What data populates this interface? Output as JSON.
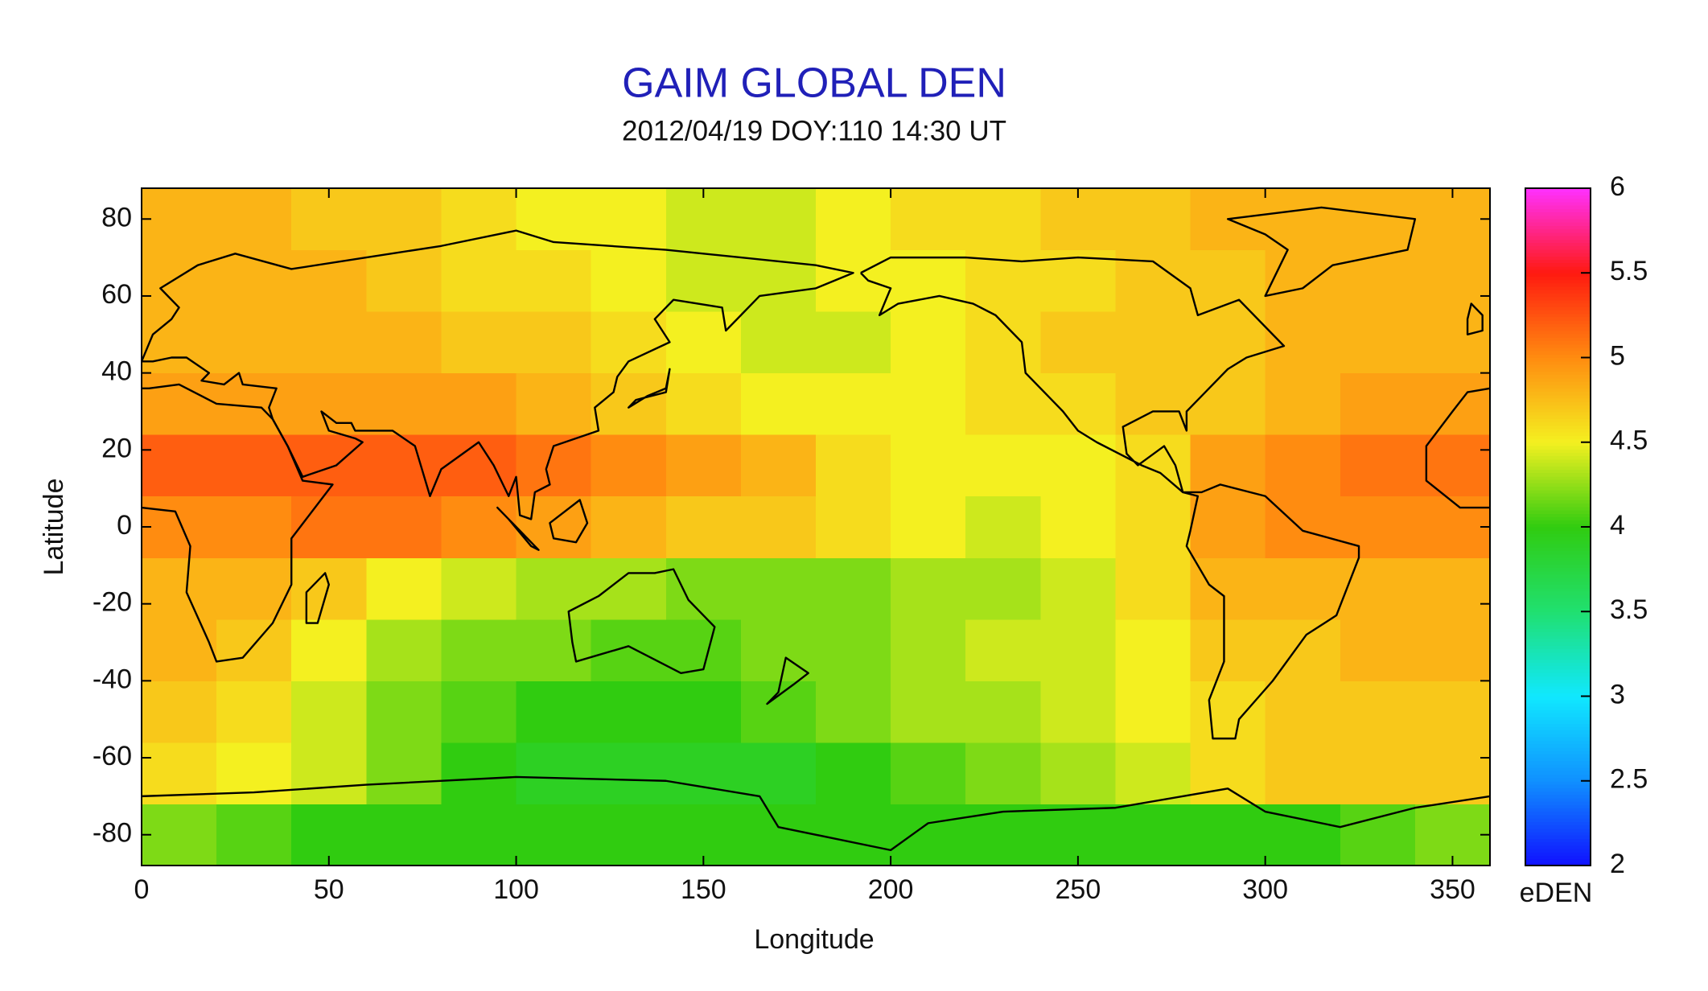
{
  "chart_data": {
    "type": "heatmap",
    "title": "GAIM GLOBAL DEN",
    "subtitle": "2012/04/19 DOY:110 14:30 UT",
    "x_label": "Longitude",
    "y_label": "Latitude",
    "colorbar_label": "eDEN",
    "x": [
      0,
      20,
      40,
      60,
      80,
      100,
      120,
      140,
      160,
      180,
      200,
      220,
      240,
      260,
      280,
      300,
      320,
      340,
      360
    ],
    "y": [
      -88,
      -72,
      -56,
      -40,
      -24,
      -8,
      8,
      24,
      40,
      56,
      72,
      88
    ],
    "z": [
      [
        4.2,
        4.1,
        4.0,
        4.0,
        4.0,
        4.0,
        4.0,
        4.0,
        4.0,
        4.0,
        4.0,
        4.0,
        4.0,
        4.0,
        4.0,
        4.0,
        4.1,
        4.2
      ],
      [
        4.6,
        4.5,
        4.4,
        4.2,
        4.0,
        3.9,
        3.9,
        3.9,
        3.9,
        4.0,
        4.1,
        4.2,
        4.3,
        4.4,
        4.6,
        4.7,
        4.7,
        4.7
      ],
      [
        4.7,
        4.6,
        4.4,
        4.2,
        4.1,
        4.0,
        4.0,
        4.0,
        4.1,
        4.2,
        4.3,
        4.3,
        4.4,
        4.5,
        4.6,
        4.7,
        4.7,
        4.7
      ],
      [
        4.8,
        4.7,
        4.5,
        4.3,
        4.2,
        4.2,
        4.1,
        4.1,
        4.2,
        4.2,
        4.3,
        4.4,
        4.4,
        4.5,
        4.7,
        4.7,
        4.8,
        4.8
      ],
      [
        4.8,
        4.8,
        4.7,
        4.5,
        4.4,
        4.3,
        4.3,
        4.2,
        4.2,
        4.2,
        4.3,
        4.3,
        4.4,
        4.6,
        4.8,
        4.8,
        4.8,
        4.8
      ],
      [
        5.0,
        5.0,
        5.1,
        5.1,
        5.0,
        4.9,
        4.8,
        4.7,
        4.7,
        4.6,
        4.5,
        4.4,
        4.5,
        4.6,
        4.9,
        5.0,
        5.0,
        5.0
      ],
      [
        5.2,
        5.2,
        5.2,
        5.2,
        5.2,
        5.1,
        5.0,
        4.9,
        4.8,
        4.6,
        4.5,
        4.5,
        4.5,
        4.6,
        4.9,
        5.0,
        5.1,
        5.1
      ],
      [
        4.9,
        4.9,
        4.9,
        4.9,
        4.9,
        4.8,
        4.7,
        4.6,
        4.5,
        4.5,
        4.5,
        4.6,
        4.6,
        4.7,
        4.7,
        4.8,
        4.9,
        4.9
      ],
      [
        4.8,
        4.8,
        4.8,
        4.8,
        4.7,
        4.7,
        4.6,
        4.5,
        4.4,
        4.4,
        4.5,
        4.6,
        4.7,
        4.7,
        4.7,
        4.8,
        4.8,
        4.8
      ],
      [
        4.8,
        4.8,
        4.8,
        4.7,
        4.6,
        4.6,
        4.5,
        4.4,
        4.4,
        4.5,
        4.5,
        4.6,
        4.6,
        4.7,
        4.7,
        4.8,
        4.8,
        4.8
      ],
      [
        4.8,
        4.8,
        4.7,
        4.7,
        4.6,
        4.5,
        4.5,
        4.4,
        4.4,
        4.5,
        4.6,
        4.6,
        4.7,
        4.7,
        4.8,
        4.8,
        4.8,
        4.8
      ]
    ],
    "xlim": [
      0,
      360
    ],
    "ylim": [
      -88,
      88
    ],
    "xticks": [
      0,
      50,
      100,
      150,
      200,
      250,
      300,
      350
    ],
    "yticks": [
      -80,
      -60,
      -40,
      -20,
      0,
      20,
      40,
      60,
      80
    ],
    "zlim": [
      2,
      6
    ],
    "zticks": [
      2,
      2.5,
      3,
      3.5,
      4,
      4.5,
      5,
      5.5,
      6
    ],
    "colormap": [
      "#1010ff",
      "#1090ff",
      "#10e8ff",
      "#20e070",
      "#30cc10",
      "#f4f020",
      "#ff8c10",
      "#ff1a10",
      "#ff30ff"
    ]
  }
}
